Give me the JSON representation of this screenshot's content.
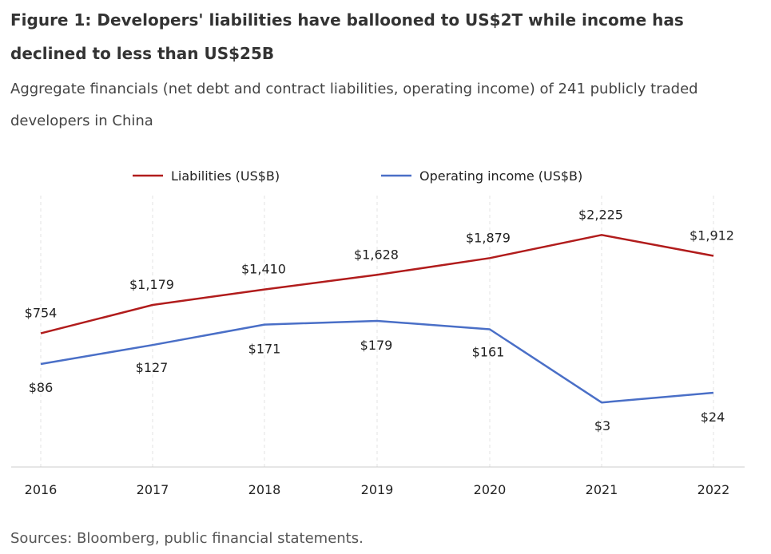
{
  "header": {
    "title": "Figure 1: Developers' liabilities have ballooned to US$2T while income has declined to less than US$25B",
    "subtitle": "Aggregate financials (net debt and contract liabilities, operating income) of 241 publicly traded developers in China"
  },
  "footer": {
    "source": "Sources: Bloomberg, public financial statements."
  },
  "chart_data": {
    "type": "line",
    "title": "Figure 1: Developers' liabilities have ballooned to US$2T while income has declined to less than US$25B",
    "subtitle": "Aggregate financials (net debt and contract liabilities, operating income) of 241 publicly traded developers in China",
    "xlabel": "",
    "ylabel": "",
    "categories": [
      "2016",
      "2017",
      "2018",
      "2019",
      "2020",
      "2021",
      "2022"
    ],
    "legend_position": "top",
    "grid": "vertical dashed",
    "series": [
      {
        "name": "Liabilities (US$B)",
        "color": "#b11c1c",
        "values": [
          754,
          1179,
          1410,
          1628,
          1879,
          2225,
          1912
        ],
        "labels": [
          "$754",
          "$1,179",
          "$1,410",
          "$1,628",
          "$1,879",
          "$2,225",
          "$1,912"
        ]
      },
      {
        "name": "Operating income (US$B)",
        "color": "#4a6fc7",
        "values": [
          86,
          127,
          171,
          179,
          161,
          3,
          24
        ],
        "labels": [
          "$86",
          "$127",
          "$171",
          "$179",
          "$161",
          "$3",
          "$24"
        ]
      }
    ]
  }
}
